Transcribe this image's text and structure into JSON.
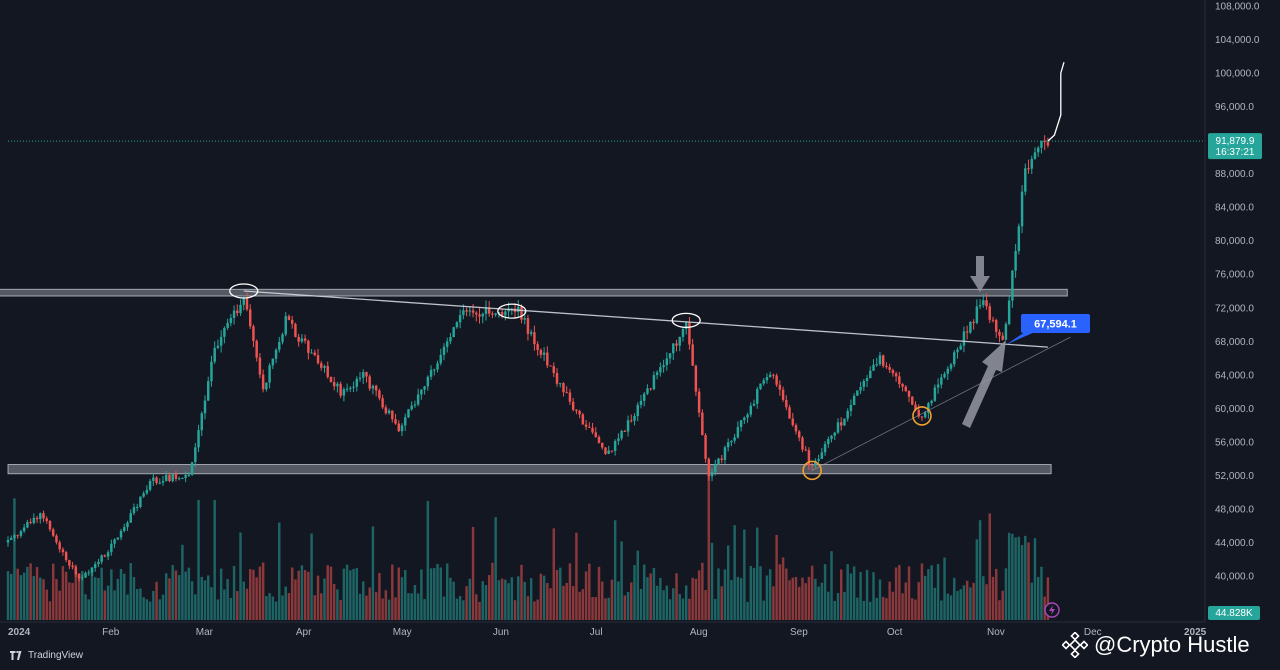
{
  "header": {
    "ghost_text": ""
  },
  "brand": {
    "name": "TradingView",
    "icon": "tradingview-icon"
  },
  "watermark": {
    "text": "@Crypto Hustle",
    "icon": "binance-icon"
  },
  "colors": {
    "background": "#131722",
    "up": "#26a69a",
    "down": "#ef5350",
    "grid": "#1e222d",
    "price_badge": "#26a69a",
    "volume_badge": "#26a69a",
    "callout": "#2962ff",
    "zone": "#d1d4dc",
    "support_marker": "#f0a030"
  },
  "chart_data": {
    "type": "candlestick",
    "x_axis": {
      "start": "2024-01-01",
      "end": "2025-01-01",
      "months": [
        "2024",
        "Feb",
        "Mar",
        "Apr",
        "May",
        "Jun",
        "Jul",
        "Aug",
        "Sep",
        "Oct",
        "Nov",
        "Dec",
        "2025"
      ]
    },
    "y_axis": {
      "min": 36000,
      "max": 108000,
      "ticks": [
        "108,000.0",
        "104,000.0",
        "100,000.0",
        "96,000.0",
        "92,000.0",
        "88,000.0",
        "84,000.0",
        "80,000.0",
        "76,000.0",
        "72,000.0",
        "68,000.0",
        "64,000.0",
        "60,000.0",
        "56,000.0",
        "52,000.0",
        "48,000.0",
        "44,000.0",
        "40,000.0"
      ],
      "tick_values": [
        108000,
        104000,
        100000,
        96000,
        92000,
        88000,
        84000,
        80000,
        76000,
        72000,
        68000,
        64000,
        60000,
        56000,
        52000,
        48000,
        44000,
        40000
      ]
    },
    "price_path": [
      [
        "2024-01-01",
        44000
      ],
      [
        "2024-01-11",
        47500
      ],
      [
        "2024-01-23",
        39500
      ],
      [
        "2024-02-01",
        43000
      ],
      [
        "2024-02-15",
        51500
      ],
      [
        "2024-02-26",
        52000
      ],
      [
        "2024-03-05",
        67000
      ],
      [
        "2024-03-14",
        73200
      ],
      [
        "2024-03-20",
        62500
      ],
      [
        "2024-03-27",
        70500
      ],
      [
        "2024-04-13",
        62000
      ],
      [
        "2024-04-20",
        64000
      ],
      [
        "2024-05-01",
        57500
      ],
      [
        "2024-05-21",
        71500
      ],
      [
        "2024-06-07",
        71500
      ],
      [
        "2024-06-24",
        60000
      ],
      [
        "2024-07-05",
        54500
      ],
      [
        "2024-07-29",
        69800
      ],
      [
        "2024-08-05",
        51500
      ],
      [
        "2024-08-24",
        64500
      ],
      [
        "2024-09-06",
        52800
      ],
      [
        "2024-09-27",
        66000
      ],
      [
        "2024-10-10",
        59000
      ],
      [
        "2024-10-29",
        73000
      ],
      [
        "2024-11-04",
        67600
      ],
      [
        "2024-11-11",
        88000
      ],
      [
        "2024-11-13",
        90000
      ],
      [
        "2024-11-18",
        91879.9
      ]
    ],
    "projection_path": [
      [
        "2024-11-18",
        91879.9
      ],
      [
        "2024-11-20",
        92600
      ],
      [
        "2024-11-22",
        95000
      ],
      [
        "2024-11-22",
        100000
      ],
      [
        "2024-11-23",
        101300
      ]
    ],
    "volume": {
      "scale_max": 44828
    },
    "zones": [
      {
        "name": "resistance-zone",
        "from": "2023-12-20",
        "to": "2024-11-24",
        "y_low": 73400,
        "y_high": 74200
      },
      {
        "name": "support-zone",
        "from": "2024-01-01",
        "to": "2024-11-19",
        "y_low": 52200,
        "y_high": 53300
      }
    ],
    "trendlines": [
      {
        "name": "descending-trendline",
        "from": [
          "2024-03-14",
          74000
        ],
        "to": [
          "2024-11-18",
          67300
        ]
      },
      {
        "name": "ascending-trendline",
        "from": [
          "2024-09-06",
          52600
        ],
        "to": [
          "2024-11-25",
          68500
        ]
      }
    ],
    "markers": [
      {
        "name": "top-marker-1",
        "date": "2024-03-14",
        "value": 74000,
        "kind": "ellipse"
      },
      {
        "name": "top-marker-2",
        "date": "2024-06-05",
        "value": 71600,
        "kind": "ellipse"
      },
      {
        "name": "top-marker-3",
        "date": "2024-07-29",
        "value": 70500,
        "kind": "ellipse"
      },
      {
        "name": "bottom-marker-1",
        "date": "2024-09-06",
        "value": 52600,
        "kind": "circle"
      },
      {
        "name": "bottom-marker-2",
        "date": "2024-10-10",
        "value": 59100,
        "kind": "circle"
      }
    ],
    "callout": {
      "date": "2024-11-05",
      "value": 67594.1,
      "label": "67,594.1"
    },
    "last_price": {
      "value": 91879.9,
      "label": "91,879.9",
      "countdown": "16:37:21"
    },
    "volume_label": "44.828K"
  }
}
